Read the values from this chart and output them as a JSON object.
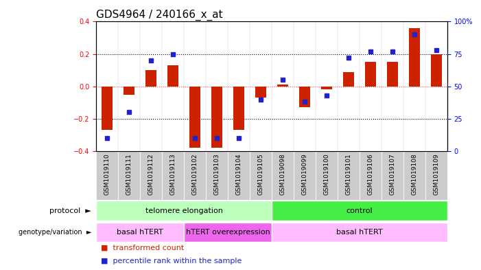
{
  "title": "GDS4964 / 240166_x_at",
  "samples": [
    "GSM1019110",
    "GSM1019111",
    "GSM1019112",
    "GSM1019113",
    "GSM1019102",
    "GSM1019103",
    "GSM1019104",
    "GSM1019105",
    "GSM1019098",
    "GSM1019099",
    "GSM1019100",
    "GSM1019101",
    "GSM1019106",
    "GSM1019107",
    "GSM1019108",
    "GSM1019109"
  ],
  "transformed_count": [
    -0.27,
    -0.05,
    0.1,
    0.13,
    -0.38,
    -0.38,
    -0.27,
    -0.07,
    0.01,
    -0.13,
    -0.02,
    0.09,
    0.15,
    0.15,
    0.36,
    0.2
  ],
  "percentile_rank": [
    10,
    30,
    70,
    75,
    10,
    10,
    10,
    40,
    55,
    38,
    43,
    72,
    77,
    77,
    90,
    78
  ],
  "ylim_left": [
    -0.4,
    0.4
  ],
  "ylim_right": [
    0,
    100
  ],
  "yticks_left": [
    -0.4,
    -0.2,
    0.0,
    0.2,
    0.4
  ],
  "yticks_right": [
    0,
    25,
    50,
    75,
    100
  ],
  "bar_color": "#cc2200",
  "dot_color": "#2222cc",
  "plot_bg": "#ffffff",
  "zero_line_color": "#ff4444",
  "dotted_line_color": "#000000",
  "protocol_groups": [
    {
      "label": "telomere elongation",
      "start": 0,
      "end": 8,
      "color": "#bbffbb"
    },
    {
      "label": "control",
      "start": 8,
      "end": 16,
      "color": "#44ee44"
    }
  ],
  "genotype_groups": [
    {
      "label": "basal hTERT",
      "start": 0,
      "end": 4,
      "color": "#ffbbff"
    },
    {
      "label": "hTERT overexpression",
      "start": 4,
      "end": 8,
      "color": "#ee66ee"
    },
    {
      "label": "basal hTERT",
      "start": 8,
      "end": 16,
      "color": "#ffbbff"
    }
  ],
  "xtick_bg": "#cccccc",
  "bar_width": 0.5,
  "dot_size": 5,
  "label_fontsize": 8,
  "tick_fontsize": 7,
  "sample_fontsize": 6.5,
  "title_fontsize": 11
}
